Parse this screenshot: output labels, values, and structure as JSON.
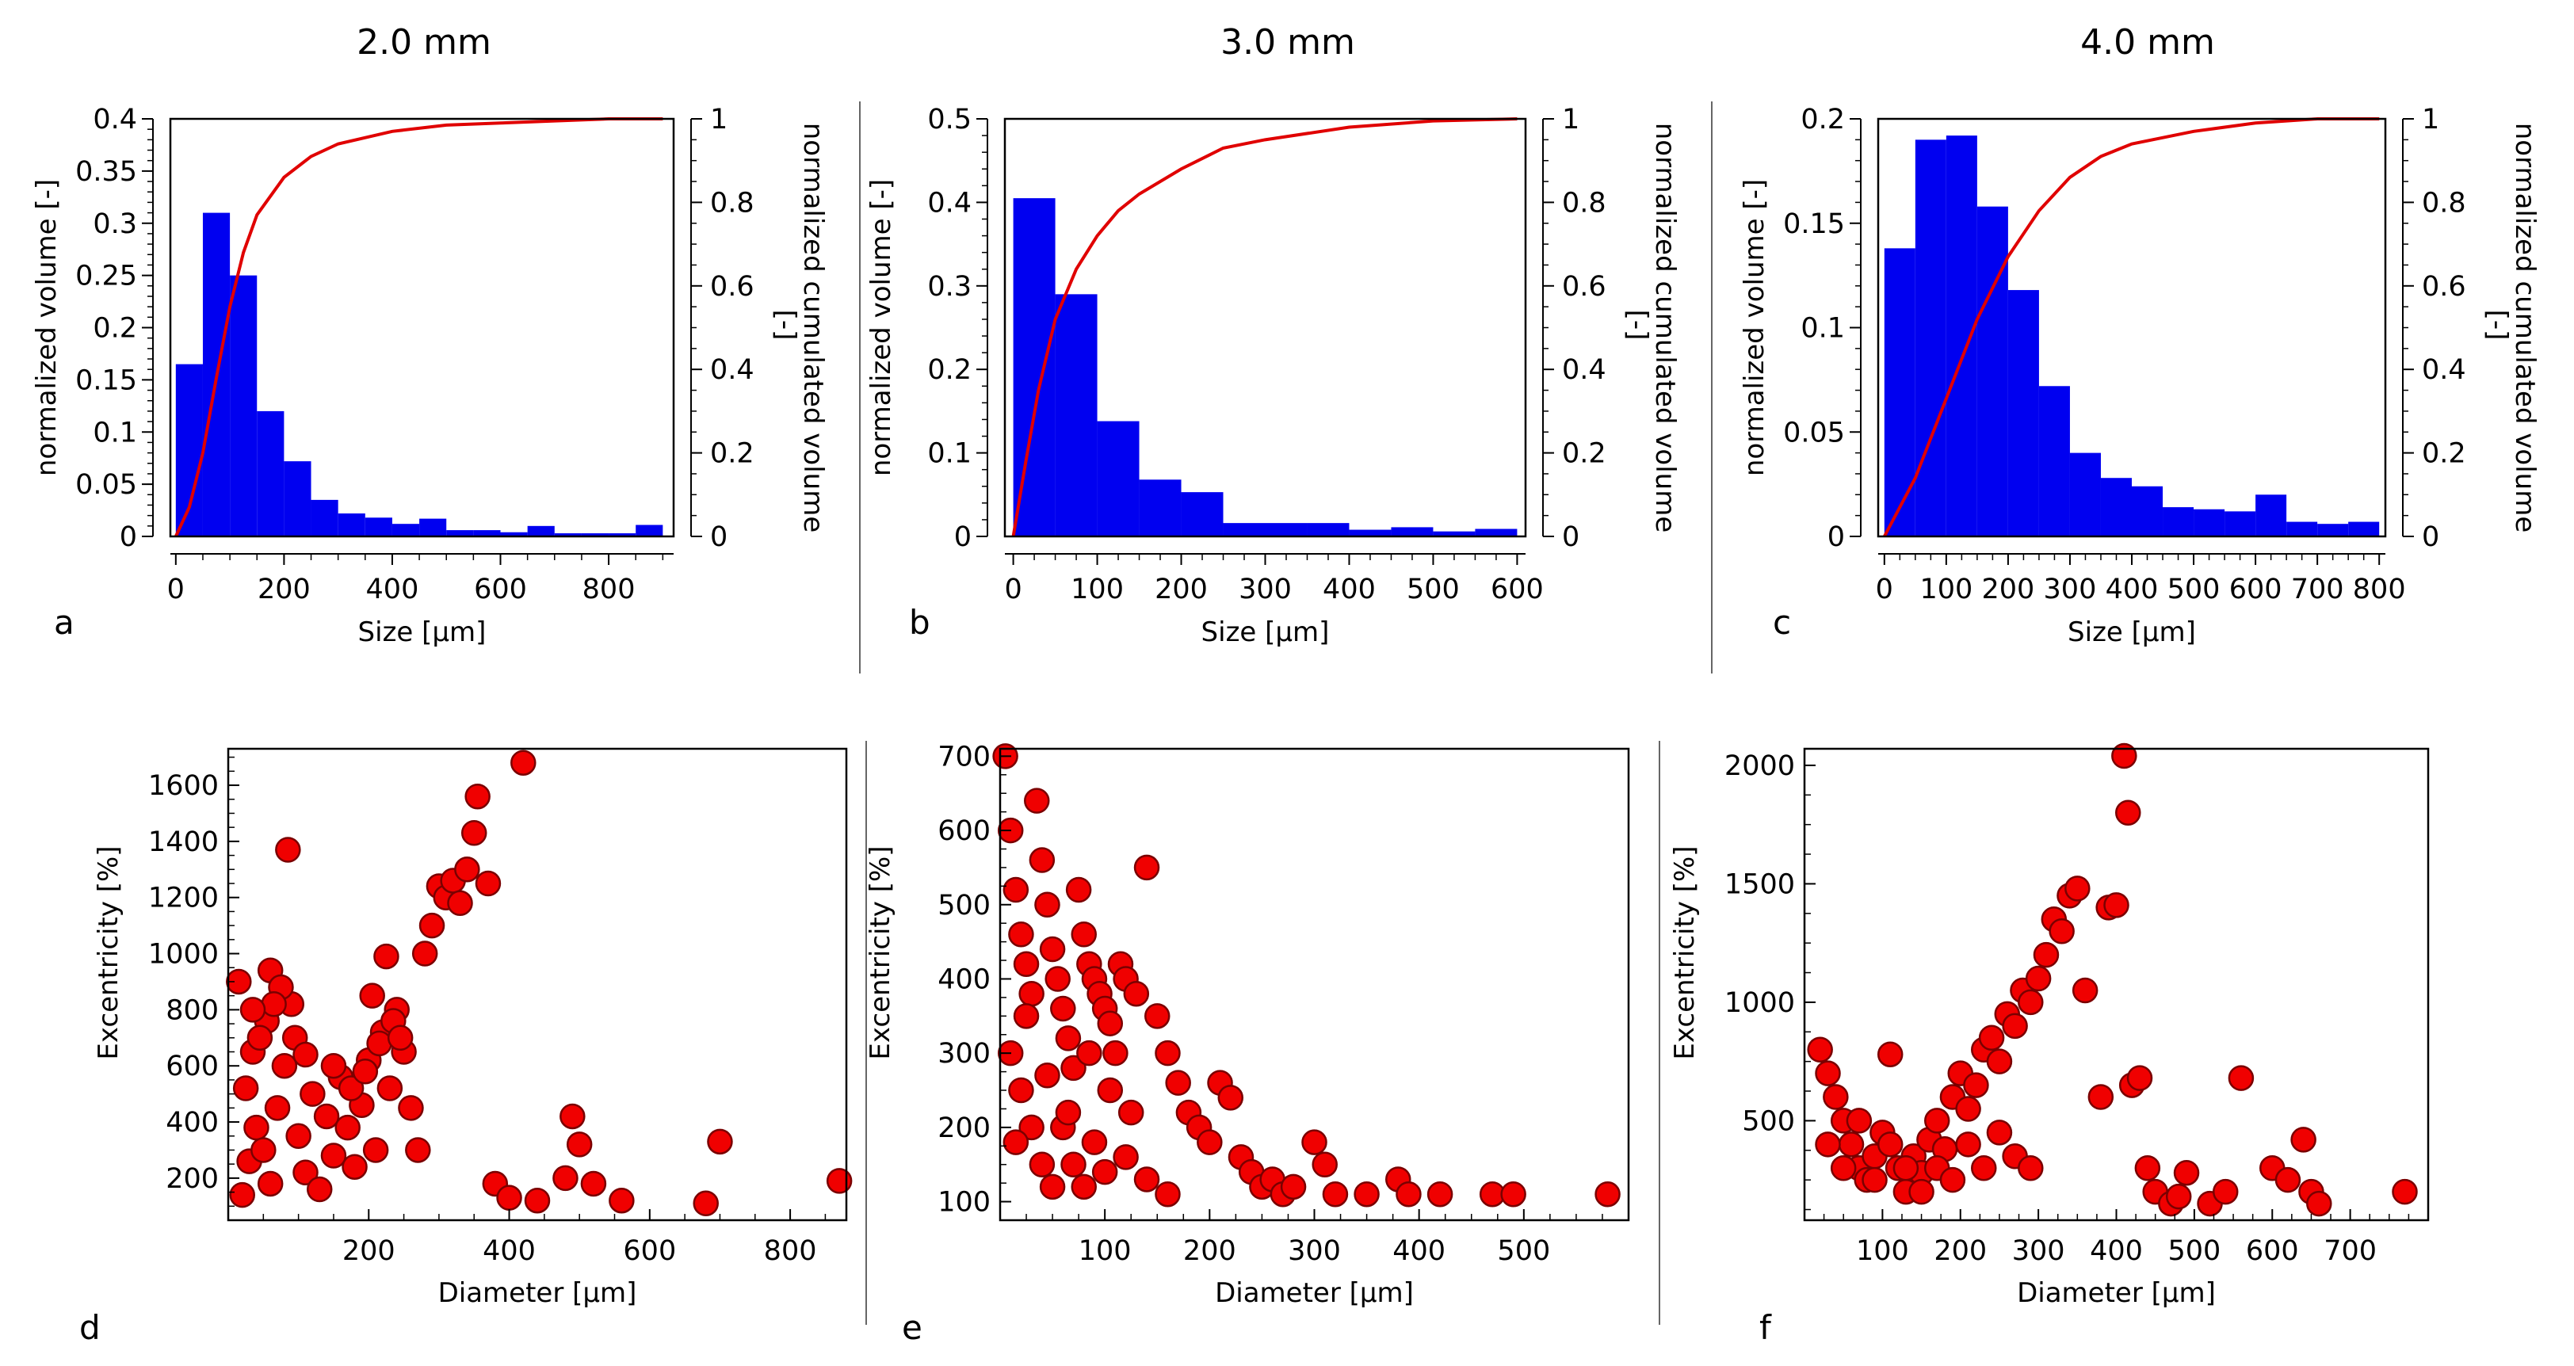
{
  "figure": {
    "column_titles": [
      "2.0 mm",
      "3.0 mm",
      "4.0 mm"
    ]
  },
  "chart_data": [
    {
      "panel": "a",
      "type": "bar",
      "title": "2.0 mm",
      "xlabel": "Size [µm]",
      "ylabel": "normalized volume [-]",
      "y2label_line1": "normalized cumulated volume",
      "y2label_line2": "[-]",
      "xlim": [
        -10,
        920
      ],
      "ylim": [
        0,
        0.4
      ],
      "y2lim": [
        0,
        1
      ],
      "xticks": [
        0,
        200,
        400,
        600,
        800
      ],
      "yticks": [
        0,
        0.05,
        0.1,
        0.15,
        0.2,
        0.25,
        0.3,
        0.35,
        0.4
      ],
      "y2ticks": [
        0,
        0.2,
        0.4,
        0.6,
        0.8,
        1
      ],
      "bin_edges": [
        0,
        50,
        100,
        150,
        200,
        250,
        300,
        350,
        400,
        450,
        500,
        550,
        600,
        650,
        700,
        750,
        800,
        850,
        900
      ],
      "bars": [
        0.165,
        0.31,
        0.25,
        0.12,
        0.072,
        0.035,
        0.022,
        0.018,
        0.012,
        0.017,
        0.006,
        0.006,
        0.004,
        0.01,
        0.003,
        0.003,
        0.003,
        0.011
      ],
      "cumulative_x": [
        0,
        25,
        50,
        75,
        100,
        125,
        150,
        200,
        250,
        300,
        400,
        500,
        600,
        700,
        800,
        900
      ],
      "cumulative_y": [
        0.0,
        0.07,
        0.2,
        0.38,
        0.55,
        0.68,
        0.77,
        0.86,
        0.91,
        0.94,
        0.97,
        0.985,
        0.99,
        0.995,
        1.0,
        1.0
      ]
    },
    {
      "panel": "b",
      "type": "bar",
      "title": "3.0 mm",
      "xlabel": "Size [µm]",
      "ylabel": "normalized volume [-]",
      "y2label_line1": "normalized cumulated volume",
      "y2label_line2": "[-]",
      "xlim": [
        -10,
        610
      ],
      "ylim": [
        0,
        0.5
      ],
      "y2lim": [
        0,
        1
      ],
      "xticks": [
        0,
        100,
        200,
        300,
        400,
        500,
        600
      ],
      "yticks": [
        0,
        0.1,
        0.2,
        0.3,
        0.4,
        0.5
      ],
      "y2ticks": [
        0,
        0.2,
        0.4,
        0.6,
        0.8,
        1
      ],
      "bin_edges": [
        0,
        50,
        100,
        150,
        200,
        250,
        300,
        350,
        400,
        450,
        500,
        550,
        600
      ],
      "bars": [
        0.405,
        0.29,
        0.138,
        0.068,
        0.053,
        0.016,
        0.016,
        0.016,
        0.008,
        0.011,
        0.006,
        0.009
      ],
      "cumulative_x": [
        0,
        15,
        30,
        50,
        75,
        100,
        125,
        150,
        200,
        250,
        300,
        400,
        500,
        600
      ],
      "cumulative_y": [
        0.0,
        0.18,
        0.35,
        0.52,
        0.64,
        0.72,
        0.78,
        0.82,
        0.88,
        0.93,
        0.95,
        0.98,
        0.995,
        1.0
      ]
    },
    {
      "panel": "c",
      "type": "bar",
      "title": "4.0 mm",
      "xlabel": "Size [µm]",
      "ylabel": "normalized volume [-]",
      "y2label_line1": "normalized cumulated volume",
      "y2label_line2": "[-]",
      "xlim": [
        -10,
        810
      ],
      "ylim": [
        0,
        0.2
      ],
      "y2lim": [
        0,
        1
      ],
      "xticks": [
        0,
        100,
        200,
        300,
        400,
        500,
        600,
        700,
        800
      ],
      "yticks": [
        0,
        0.05,
        0.1,
        0.15,
        0.2
      ],
      "y2ticks": [
        0,
        0.2,
        0.4,
        0.6,
        0.8,
        1
      ],
      "bin_edges": [
        0,
        50,
        100,
        150,
        200,
        250,
        300,
        350,
        400,
        450,
        500,
        550,
        600,
        650,
        700,
        750,
        800
      ],
      "bars": [
        0.138,
        0.19,
        0.192,
        0.158,
        0.118,
        0.072,
        0.04,
        0.028,
        0.024,
        0.014,
        0.013,
        0.012,
        0.02,
        0.007,
        0.006,
        0.007
      ],
      "cumulative_x": [
        0,
        50,
        100,
        150,
        200,
        250,
        300,
        350,
        400,
        500,
        600,
        700,
        800
      ],
      "cumulative_y": [
        0.0,
        0.14,
        0.33,
        0.52,
        0.67,
        0.78,
        0.86,
        0.91,
        0.94,
        0.97,
        0.99,
        1.0,
        1.0
      ]
    },
    {
      "panel": "d",
      "type": "scatter",
      "xlabel": "Diameter [µm]",
      "ylabel": "Excentricity [%]",
      "xlim": [
        0,
        880
      ],
      "ylim": [
        50,
        1730
      ],
      "xticks": [
        200,
        400,
        600,
        800
      ],
      "yticks": [
        200,
        400,
        600,
        800,
        1000,
        1200,
        1400,
        1600
      ],
      "points": [
        [
          20,
          140
        ],
        [
          30,
          260
        ],
        [
          40,
          380
        ],
        [
          25,
          520
        ],
        [
          35,
          650
        ],
        [
          50,
          300
        ],
        [
          60,
          180
        ],
        [
          70,
          450
        ],
        [
          80,
          600
        ],
        [
          90,
          820
        ],
        [
          100,
          350
        ],
        [
          110,
          220
        ],
        [
          120,
          500
        ],
        [
          130,
          160
        ],
        [
          140,
          420
        ],
        [
          150,
          280
        ],
        [
          160,
          560
        ],
        [
          170,
          380
        ],
        [
          180,
          240
        ],
        [
          190,
          460
        ],
        [
          200,
          620
        ],
        [
          210,
          300
        ],
        [
          220,
          720
        ],
        [
          230,
          520
        ],
        [
          240,
          800
        ],
        [
          250,
          650
        ],
        [
          260,
          450
        ],
        [
          270,
          300
        ],
        [
          280,
          1000
        ],
        [
          290,
          1100
        ],
        [
          300,
          1240
        ],
        [
          310,
          1200
        ],
        [
          320,
          1260
        ],
        [
          330,
          1180
        ],
        [
          340,
          1300
        ],
        [
          350,
          1430
        ],
        [
          355,
          1560
        ],
        [
          370,
          1250
        ],
        [
          380,
          180
        ],
        [
          400,
          130
        ],
        [
          420,
          1680
        ],
        [
          440,
          120
        ],
        [
          480,
          200
        ],
        [
          490,
          420
        ],
        [
          500,
          320
        ],
        [
          520,
          180
        ],
        [
          560,
          120
        ],
        [
          680,
          110
        ],
        [
          700,
          330
        ],
        [
          870,
          190
        ],
        [
          60,
          940
        ],
        [
          75,
          880
        ],
        [
          55,
          760
        ],
        [
          45,
          700
        ],
        [
          65,
          820
        ],
        [
          85,
          1370
        ],
        [
          15,
          900
        ],
        [
          35,
          800
        ],
        [
          95,
          700
        ],
        [
          110,
          640
        ],
        [
          150,
          600
        ],
        [
          175,
          520
        ],
        [
          195,
          580
        ],
        [
          215,
          680
        ],
        [
          235,
          760
        ],
        [
          245,
          700
        ],
        [
          225,
          990
        ],
        [
          205,
          850
        ]
      ]
    },
    {
      "panel": "e",
      "type": "scatter",
      "xlabel": "Diameter [µm]",
      "ylabel": "Excentricity [%]",
      "xlim": [
        0,
        600
      ],
      "ylim": [
        75,
        710
      ],
      "xticks": [
        100,
        200,
        300,
        400,
        500
      ],
      "yticks": [
        100,
        200,
        300,
        400,
        500,
        600,
        700
      ],
      "points": [
        [
          5,
          700
        ],
        [
          10,
          600
        ],
        [
          15,
          520
        ],
        [
          20,
          460
        ],
        [
          25,
          420
        ],
        [
          30,
          380
        ],
        [
          35,
          640
        ],
        [
          40,
          560
        ],
        [
          45,
          500
        ],
        [
          50,
          440
        ],
        [
          55,
          400
        ],
        [
          60,
          360
        ],
        [
          65,
          320
        ],
        [
          70,
          280
        ],
        [
          75,
          520
        ],
        [
          80,
          460
        ],
        [
          85,
          420
        ],
        [
          90,
          400
        ],
        [
          95,
          380
        ],
        [
          100,
          360
        ],
        [
          105,
          340
        ],
        [
          110,
          300
        ],
        [
          115,
          420
        ],
        [
          120,
          400
        ],
        [
          130,
          380
        ],
        [
          140,
          550
        ],
        [
          150,
          350
        ],
        [
          160,
          300
        ],
        [
          170,
          260
        ],
        [
          180,
          220
        ],
        [
          190,
          200
        ],
        [
          200,
          180
        ],
        [
          210,
          260
        ],
        [
          220,
          240
        ],
        [
          230,
          160
        ],
        [
          240,
          140
        ],
        [
          250,
          120
        ],
        [
          260,
          130
        ],
        [
          270,
          110
        ],
        [
          280,
          120
        ],
        [
          300,
          180
        ],
        [
          310,
          150
        ],
        [
          320,
          110
        ],
        [
          350,
          110
        ],
        [
          380,
          130
        ],
        [
          390,
          110
        ],
        [
          420,
          110
        ],
        [
          470,
          110
        ],
        [
          490,
          110
        ],
        [
          580,
          110
        ],
        [
          10,
          300
        ],
        [
          20,
          250
        ],
        [
          30,
          200
        ],
        [
          40,
          150
        ],
        [
          50,
          120
        ],
        [
          60,
          200
        ],
        [
          70,
          150
        ],
        [
          80,
          120
        ],
        [
          90,
          180
        ],
        [
          100,
          140
        ],
        [
          120,
          160
        ],
        [
          140,
          130
        ],
        [
          160,
          110
        ],
        [
          15,
          180
        ],
        [
          25,
          350
        ],
        [
          45,
          270
        ],
        [
          65,
          220
        ],
        [
          85,
          300
        ],
        [
          105,
          250
        ],
        [
          125,
          220
        ]
      ]
    },
    {
      "panel": "f",
      "type": "scatter",
      "xlabel": "Diameter [µm]",
      "ylabel": "Excentricity [%]",
      "xlim": [
        0,
        800
      ],
      "ylim": [
        80,
        2070
      ],
      "xticks": [
        100,
        200,
        300,
        400,
        500,
        600,
        700
      ],
      "yticks": [
        500,
        1000,
        1500,
        2000
      ],
      "points": [
        [
          20,
          800
        ],
        [
          30,
          700
        ],
        [
          40,
          600
        ],
        [
          50,
          500
        ],
        [
          60,
          400
        ],
        [
          70,
          300
        ],
        [
          80,
          250
        ],
        [
          90,
          350
        ],
        [
          100,
          450
        ],
        [
          110,
          780
        ],
        [
          120,
          300
        ],
        [
          130,
          200
        ],
        [
          140,
          350
        ],
        [
          150,
          280
        ],
        [
          160,
          420
        ],
        [
          170,
          500
        ],
        [
          180,
          380
        ],
        [
          190,
          600
        ],
        [
          200,
          700
        ],
        [
          210,
          550
        ],
        [
          220,
          650
        ],
        [
          230,
          800
        ],
        [
          240,
          850
        ],
        [
          250,
          750
        ],
        [
          260,
          950
        ],
        [
          270,
          900
        ],
        [
          280,
          1050
        ],
        [
          290,
          1000
        ],
        [
          300,
          1100
        ],
        [
          310,
          1200
        ],
        [
          320,
          1350
        ],
        [
          330,
          1300
        ],
        [
          340,
          1450
        ],
        [
          350,
          1480
        ],
        [
          360,
          1050
        ],
        [
          380,
          600
        ],
        [
          390,
          1400
        ],
        [
          400,
          1410
        ],
        [
          410,
          2040
        ],
        [
          415,
          1800
        ],
        [
          420,
          650
        ],
        [
          430,
          680
        ],
        [
          440,
          300
        ],
        [
          450,
          200
        ],
        [
          470,
          150
        ],
        [
          480,
          180
        ],
        [
          490,
          280
        ],
        [
          520,
          150
        ],
        [
          540,
          200
        ],
        [
          560,
          680
        ],
        [
          600,
          300
        ],
        [
          620,
          250
        ],
        [
          640,
          420
        ],
        [
          650,
          200
        ],
        [
          660,
          150
        ],
        [
          770,
          200
        ],
        [
          30,
          400
        ],
        [
          50,
          300
        ],
        [
          70,
          500
        ],
        [
          90,
          250
        ],
        [
          110,
          400
        ],
        [
          130,
          300
        ],
        [
          150,
          200
        ],
        [
          170,
          300
        ],
        [
          190,
          250
        ],
        [
          210,
          400
        ],
        [
          230,
          300
        ],
        [
          250,
          450
        ],
        [
          270,
          350
        ],
        [
          290,
          300
        ]
      ]
    }
  ]
}
